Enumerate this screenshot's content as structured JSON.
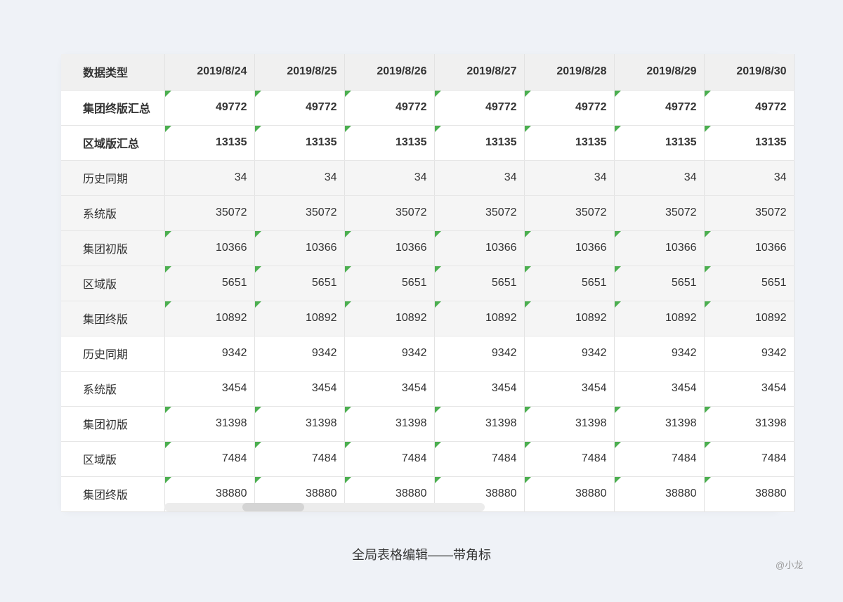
{
  "table": {
    "header_first": "数据类型",
    "dates": [
      "2019/8/24",
      "2019/8/25",
      "2019/8/26",
      "2019/8/27",
      "2019/8/28",
      "2019/8/29",
      "2019/8/30"
    ],
    "rows": [
      {
        "label": "集团终版汇总",
        "value": "49772",
        "style": "sum",
        "marked": true
      },
      {
        "label": "区域版汇总",
        "value": "13135",
        "style": "sum",
        "marked": true
      },
      {
        "label": "历史同期",
        "value": "34",
        "style": "gray",
        "marked": false
      },
      {
        "label": "系统版",
        "value": "35072",
        "style": "gray",
        "marked": false
      },
      {
        "label": "集团初版",
        "value": "10366",
        "style": "gray",
        "marked": true
      },
      {
        "label": "区域版",
        "value": "5651",
        "style": "gray",
        "marked": true
      },
      {
        "label": "集团终版",
        "value": "10892",
        "style": "gray",
        "marked": true
      },
      {
        "label": "历史同期",
        "value": "9342",
        "style": "white",
        "marked": false
      },
      {
        "label": "系统版",
        "value": "3454",
        "style": "white",
        "marked": false
      },
      {
        "label": "集团初版",
        "value": "31398",
        "style": "white",
        "marked": true
      },
      {
        "label": "区域版",
        "value": "7484",
        "style": "white",
        "marked": true
      },
      {
        "label": "集团终版",
        "value": "38880",
        "style": "white",
        "marked": true
      }
    ]
  },
  "colors": {
    "corner_mark": "#4caf50"
  },
  "caption": "全局表格编辑——带角标",
  "author": "@小龙"
}
